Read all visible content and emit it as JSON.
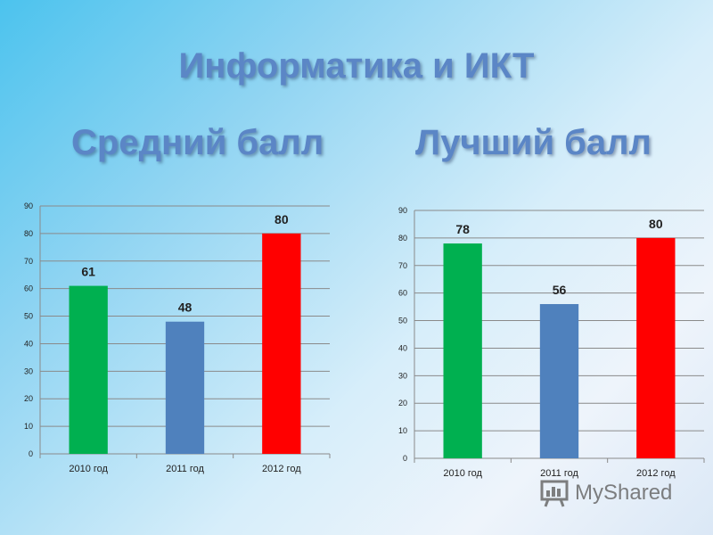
{
  "title": "Информатика и ИКТ",
  "watermark": "MyShared",
  "chart_data": [
    {
      "type": "bar",
      "title": "Средний балл",
      "categories": [
        "2010 год",
        "2011 год",
        "2012 год"
      ],
      "values": [
        61,
        48,
        80
      ],
      "colors": [
        "#00b050",
        "#4f81bd",
        "#ff0000"
      ],
      "ylim": [
        0,
        90
      ],
      "yticks": [
        0,
        10,
        20,
        30,
        40,
        50,
        60,
        70,
        80,
        90
      ],
      "grid": true,
      "data_labels": true,
      "legend": "none"
    },
    {
      "type": "bar",
      "title": "Лучший балл",
      "categories": [
        "2010 год",
        "2011 год",
        "2012 год"
      ],
      "values": [
        78,
        56,
        80
      ],
      "colors": [
        "#00b050",
        "#4f81bd",
        "#ff0000"
      ],
      "ylim": [
        0,
        90
      ],
      "yticks": [
        0,
        10,
        20,
        30,
        40,
        50,
        60,
        70,
        80,
        90
      ],
      "grid": true,
      "data_labels": true,
      "legend": "none"
    }
  ]
}
